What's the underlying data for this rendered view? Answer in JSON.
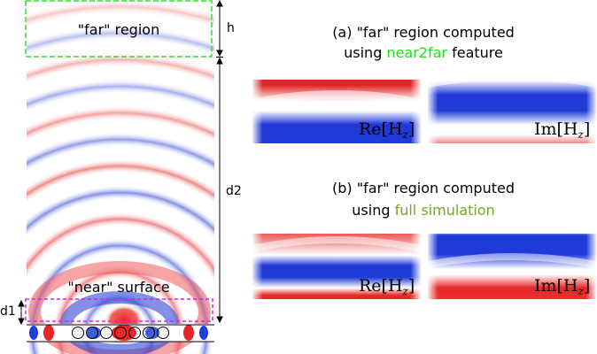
{
  "labels": {
    "far_region": "\"far\" region",
    "near_surface": "\"near\" surface",
    "dim_h": "h",
    "dim_d2": "d2",
    "dim_d1": "d1"
  },
  "panel_a": {
    "line1": "(a) \"far\" region computed",
    "line2_prefix": "using ",
    "line2_highlight": "near2far",
    "line2_suffix": " feature",
    "highlight_color": "#22dd22"
  },
  "panel_b": {
    "line1": "(b) \"far\" region computed",
    "line2_prefix": "using ",
    "line2_highlight": "full simulation",
    "highlight_color": "#77a81f"
  },
  "field_labels": {
    "re_prefix": "Re[H",
    "im_prefix": "Im[H",
    "sub": "z",
    "close": "]"
  },
  "colors": {
    "positive": "#e8262a",
    "negative": "#1f3fd6",
    "far_box": "#33dd33",
    "near_box": "#dd22dd"
  }
}
